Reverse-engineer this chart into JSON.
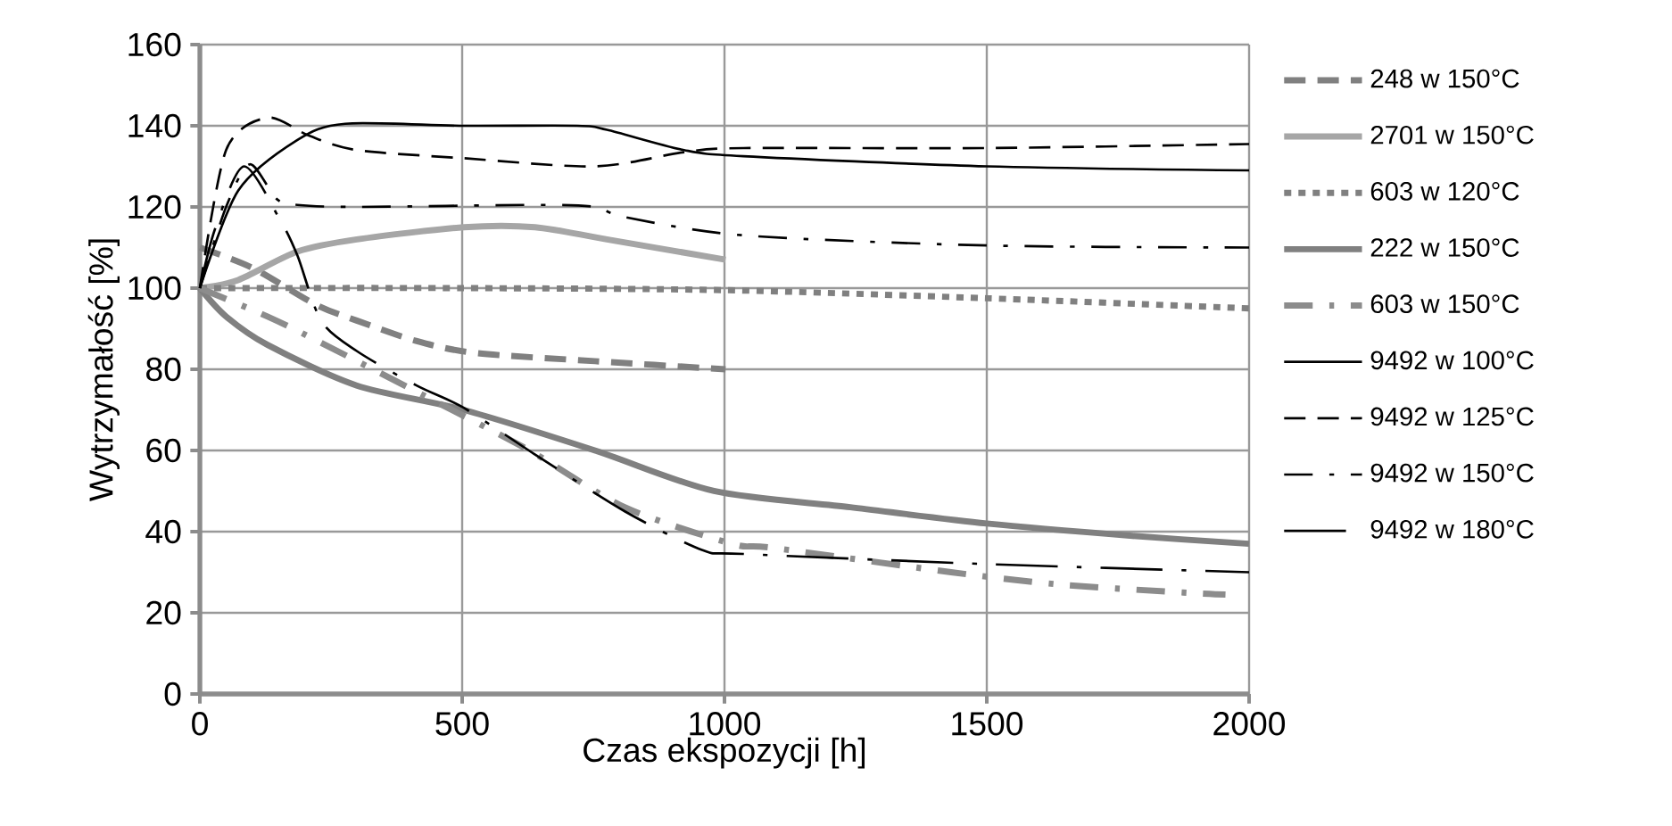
{
  "chart_data": {
    "type": "line",
    "xlabel": "Czas ekspozycji [h]",
    "ylabel": "Wytrzymałość [%]",
    "xlim": [
      0,
      2000
    ],
    "ylim": [
      0,
      160
    ],
    "xticks": [
      0,
      500,
      1000,
      1500,
      2000
    ],
    "yticks": [
      0,
      20,
      40,
      60,
      80,
      100,
      120,
      140,
      160
    ],
    "grid": true,
    "legend": "right",
    "marker": "none",
    "series": [
      {
        "name": "248 w 150°C",
        "color": "#808080",
        "line_style": "dashed",
        "x": [
          0,
          100,
          220,
          299,
          412,
          526,
          753,
          1002
        ],
        "values": [
          110,
          105,
          96,
          92,
          87,
          84,
          82,
          80
        ]
      },
      {
        "name": "2701 w 150°C",
        "color": "#a6a6a6",
        "line_style": "solid",
        "x": [
          0,
          73,
          186,
          299,
          503,
          639,
          776,
          1002
        ],
        "values": [
          100,
          102,
          109,
          112,
          115,
          115,
          112,
          107
        ]
      },
      {
        "name": "603 w 120°C",
        "color": "#808080",
        "line_style": "dotted",
        "x": [
          0,
          500,
          1000,
          1500,
          2000
        ],
        "values": [
          100,
          100,
          99.5,
          97.5,
          95
        ]
      },
      {
        "name": "222 w 150°C",
        "color": "#808080",
        "line_style": "solid",
        "x": [
          0,
          50,
          129,
          299,
          503,
          753,
          980,
          1240,
          1500,
          1773,
          2000
        ],
        "values": [
          100,
          93,
          86,
          76,
          70,
          60,
          50,
          46,
          42,
          39,
          37
        ]
      },
      {
        "name": "603 w 150°C",
        "color": "#8c8c8c",
        "line_style": "dashdot",
        "x": [
          0,
          129,
          224,
          435,
          628,
          810,
          1014,
          1092,
          1432,
          1636,
          1874,
          1955
        ],
        "values": [
          100,
          93,
          87,
          73,
          60,
          46,
          37,
          36,
          30,
          27,
          25,
          24.5
        ]
      },
      {
        "name": "9492 w 100°C",
        "color": "#000000",
        "line_style": "solid",
        "x": [
          0,
          73,
          186,
          277,
          503,
          719,
          776,
          923,
          1036,
          1500,
          2000
        ],
        "values": [
          100,
          124,
          136.5,
          140.5,
          140,
          140,
          139,
          134,
          132.5,
          130,
          129
        ]
      },
      {
        "name": "9492 w 125°C",
        "color": "#000000",
        "line_style": "dashed",
        "x": [
          0,
          50,
          129,
          209,
          299,
          503,
          753,
          923,
          1036,
          1500,
          2000
        ],
        "values": [
          100,
          134,
          142,
          137.5,
          134,
          132,
          130,
          133.5,
          134.5,
          134.5,
          135.5
        ]
      },
      {
        "name": "9492 w 150°C",
        "color": "#000000",
        "line_style": "dashdot",
        "x": [
          0,
          50,
          95,
          146,
          186,
          299,
          639,
          753,
          810,
          1036,
          1500,
          2000
        ],
        "values": [
          100,
          120,
          130.5,
          122,
          120.5,
          120,
          120.5,
          120,
          117.5,
          113,
          110.5,
          110
        ]
      },
      {
        "name": "9492 w 180°C",
        "color": "#000000",
        "line_style": "longdashdot",
        "x": [
          0,
          30,
          84,
          152,
          186,
          231,
          299,
          413,
          503,
          639,
          810,
          957,
          1036,
          1500,
          2000
        ],
        "values": [
          100,
          115,
          130,
          117,
          108,
          92,
          84.5,
          76,
          70.5,
          59,
          45,
          35.5,
          34.5,
          32,
          30
        ]
      }
    ]
  }
}
